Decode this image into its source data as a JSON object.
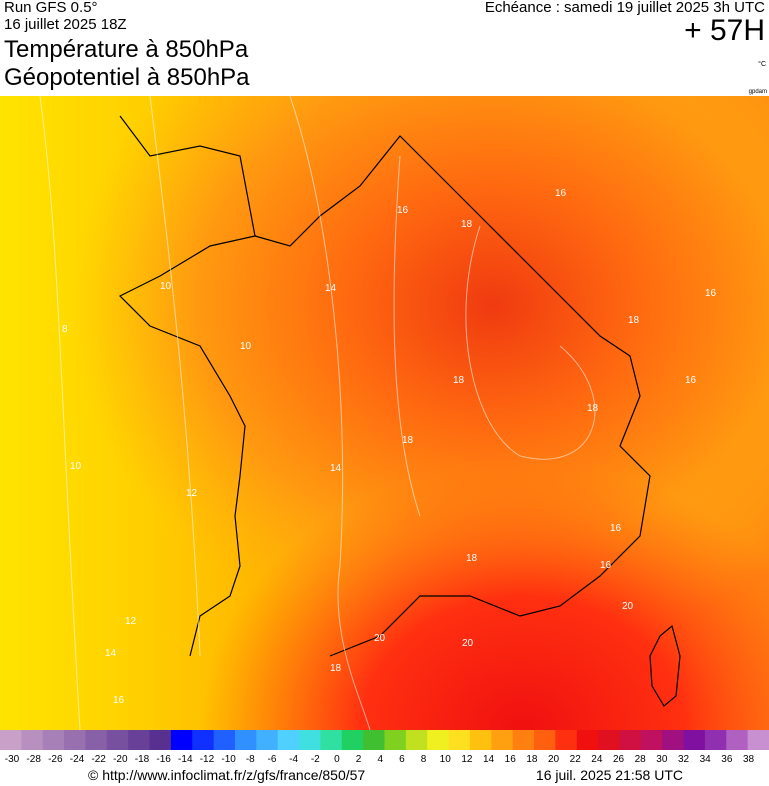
{
  "header": {
    "run": "Run GFS 0.5°",
    "init": "16 juillet 2025 18Z",
    "title1": "Température à 850hPa",
    "title2": "Géopotentiel à 850hPa",
    "valid": "Echéance : samedi 19 juillet 2025 3h UTC",
    "lead": "+ 57H",
    "unit": "°C",
    "watermark": "gpdam"
  },
  "map": {
    "region": "France",
    "contour_labels": [
      "8",
      "10",
      "10",
      "10",
      "12",
      "12",
      "14",
      "14",
      "14",
      "16",
      "16",
      "16",
      "16",
      "16",
      "16",
      "16",
      "18",
      "18",
      "18",
      "18",
      "18",
      "18",
      "18",
      "20",
      "20",
      "20"
    ]
  },
  "scale": {
    "ticks": [
      "-30",
      "-28",
      "-26",
      "-24",
      "-22",
      "-20",
      "-18",
      "-16",
      "-14",
      "-12",
      "-10",
      "-8",
      "-6",
      "-4",
      "-2",
      "0",
      "2",
      "4",
      "6",
      "8",
      "10",
      "12",
      "14",
      "16",
      "18",
      "20",
      "22",
      "24",
      "26",
      "28",
      "30",
      "32",
      "34",
      "36",
      "38"
    ],
    "colors": [
      "#c8a0c8",
      "#b890c0",
      "#a880b8",
      "#9870b0",
      "#8860a8",
      "#7850a0",
      "#684098",
      "#583090",
      "#0000ff",
      "#1030ff",
      "#2060ff",
      "#3090ff",
      "#40b0ff",
      "#50d0ff",
      "#40e0e0",
      "#30e0a0",
      "#20d060",
      "#40c030",
      "#80d020",
      "#c0e020",
      "#f0f020",
      "#ffe020",
      "#ffc010",
      "#ffa010",
      "#ff8010",
      "#ff6010",
      "#ff3010",
      "#f01010",
      "#e01020",
      "#d01040",
      "#c01060",
      "#a01080",
      "#8010a0",
      "#9030b0",
      "#b060c0",
      "#c890d0"
    ]
  },
  "footer": {
    "url": "© http://www.infoclimat.fr/z/gfs/france/850/57",
    "timestamp": "16 juil. 2025 21:58 UTC"
  }
}
